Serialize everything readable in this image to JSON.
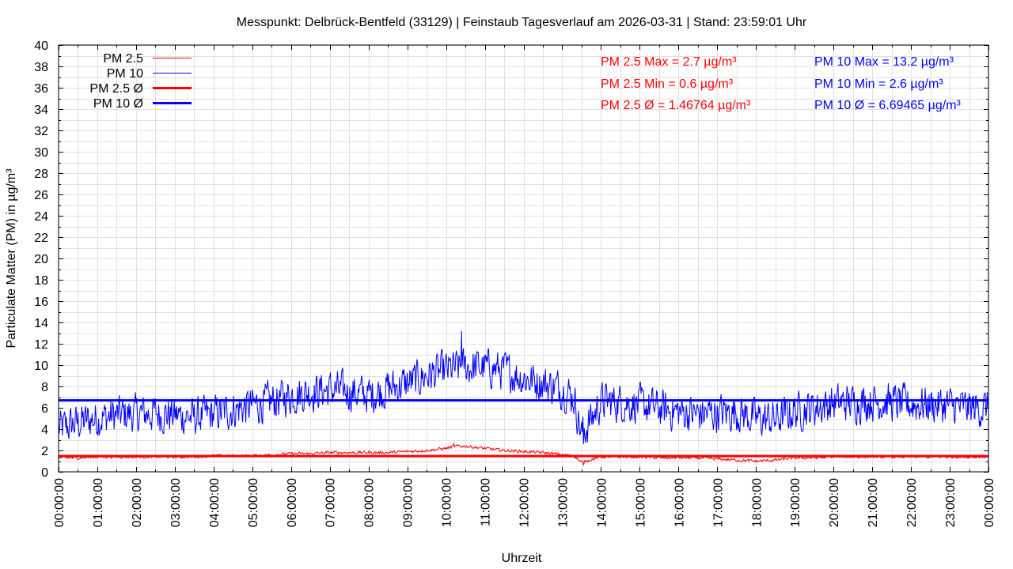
{
  "chart_data": {
    "type": "line",
    "title": "Messpunkt: Delbrück-Bentfeld (33129) | Feinstaub Tagesverlauf am 2026-03-31 | Stand: 23:59:01 Uhr",
    "xlabel": "Uhrzeit",
    "ylabel": "Particulate Matter (PM) in µg/m³",
    "ylim": [
      0,
      40
    ],
    "yticks": [
      "0",
      "2",
      "4",
      "6",
      "8",
      "10",
      "12",
      "14",
      "16",
      "18",
      "20",
      "22",
      "24",
      "26",
      "28",
      "30",
      "32",
      "34",
      "36",
      "38",
      "40"
    ],
    "xlim": [
      "00:00:00",
      "24:00:00"
    ],
    "xticks": [
      "00:00:00",
      "01:00:00",
      "02:00:00",
      "03:00:00",
      "04:00:00",
      "05:00:00",
      "06:00:00",
      "07:00:00",
      "08:00:00",
      "09:00:00",
      "10:00:00",
      "11:00:00",
      "12:00:00",
      "13:00:00",
      "14:00:00",
      "15:00:00",
      "16:00:00",
      "17:00:00",
      "18:00:00",
      "19:00:00",
      "20:00:00",
      "21:00:00",
      "22:00:00",
      "23:00:00",
      "00:00:00"
    ],
    "grid": true,
    "legend_position": "top-left",
    "colors": {
      "pm25": "#ff0000",
      "pm10": "#0000ff"
    },
    "series": [
      {
        "name": "PM 2.5",
        "color": "#ff0000",
        "hours": [
          0,
          0.5,
          1,
          1.5,
          2,
          2.5,
          3,
          3.5,
          4,
          4.5,
          5,
          5.5,
          6,
          6.5,
          7,
          7.5,
          8,
          8.5,
          9,
          9.5,
          10,
          10.25,
          10.5,
          10.75,
          11,
          11.5,
          12,
          12.5,
          13,
          13.3,
          13.5,
          13.8,
          14,
          14.5,
          15,
          15.5,
          16,
          16.5,
          17,
          17.5,
          18,
          18.5,
          19,
          19.5,
          20,
          20.5,
          21,
          21.5,
          22,
          22.5,
          23,
          23.5,
          24
        ],
        "values": [
          1.3,
          1.3,
          1.4,
          1.4,
          1.4,
          1.4,
          1.4,
          1.4,
          1.5,
          1.5,
          1.5,
          1.6,
          1.7,
          1.7,
          1.8,
          1.8,
          1.8,
          1.8,
          1.9,
          2.0,
          2.2,
          2.4,
          2.4,
          2.3,
          2.2,
          2.0,
          1.9,
          1.8,
          1.6,
          1.5,
          0.9,
          1.2,
          1.4,
          1.4,
          1.4,
          1.3,
          1.3,
          1.3,
          1.2,
          1.1,
          1.0,
          1.1,
          1.3,
          1.3,
          1.4,
          1.4,
          1.4,
          1.4,
          1.4,
          1.4,
          1.4,
          1.4,
          1.4
        ]
      },
      {
        "name": "PM 10",
        "color": "#0000ff",
        "hours": [
          0,
          0.5,
          1,
          1.5,
          2,
          2.5,
          3,
          3.5,
          4,
          4.5,
          5,
          5.5,
          6,
          6.5,
          7,
          7.5,
          8,
          8.5,
          9,
          9.5,
          10,
          10.5,
          11,
          11.5,
          12,
          12.5,
          13,
          13.3,
          13.5,
          13.8,
          14,
          14.5,
          15,
          15.5,
          16,
          16.5,
          17,
          17.5,
          18,
          18.5,
          19,
          19.5,
          20,
          20.5,
          21,
          21.5,
          22,
          22.5,
          23,
          23.5,
          24
        ],
        "values": [
          4.0,
          4.6,
          5.0,
          5.3,
          5.4,
          5.5,
          5.3,
          5.1,
          5.4,
          5.8,
          6.2,
          6.6,
          7.2,
          7.5,
          7.7,
          7.5,
          7.2,
          7.8,
          8.3,
          9.0,
          9.5,
          9.8,
          9.8,
          9.5,
          8.8,
          8.3,
          7.8,
          7.0,
          3.5,
          5.2,
          6.6,
          6.5,
          6.3,
          5.9,
          5.6,
          5.4,
          5.5,
          5.6,
          5.0,
          4.9,
          5.7,
          6.0,
          6.4,
          6.5,
          6.6,
          6.5,
          6.3,
          6.3,
          6.2,
          6.0,
          6.0
        ]
      },
      {
        "name": "PM 2.5 Ø",
        "color": "#ff0000",
        "constant": 1.46764
      },
      {
        "name": "PM 10 Ø",
        "color": "#0000ff",
        "constant": 6.69465
      }
    ],
    "annotations": [
      {
        "text": "PM 2.5 Max = 2.7 µg/m³",
        "color": "#ff0000"
      },
      {
        "text": "PM 2.5 Min = 0.6 µg/m³",
        "color": "#ff0000"
      },
      {
        "text": "PM 2.5 Ø = 1.46764 µg/m³",
        "color": "#ff0000"
      },
      {
        "text": "PM 10 Max = 13.2 µg/m³",
        "color": "#0000ff"
      },
      {
        "text": "PM 10 Min = 2.6 µg/m³",
        "color": "#0000ff"
      },
      {
        "text": "PM 10 Ø = 6.69465 µg/m³",
        "color": "#0000ff"
      }
    ],
    "extremes": {
      "pm25_max": {
        "hour": 10.2,
        "value": 2.7
      },
      "pm25_min": {
        "hour": 13.55,
        "value": 0.6
      },
      "pm10_max": {
        "hour": 10.4,
        "value": 13.2
      },
      "pm10_min": {
        "hour": 13.55,
        "value": 2.6
      }
    }
  }
}
